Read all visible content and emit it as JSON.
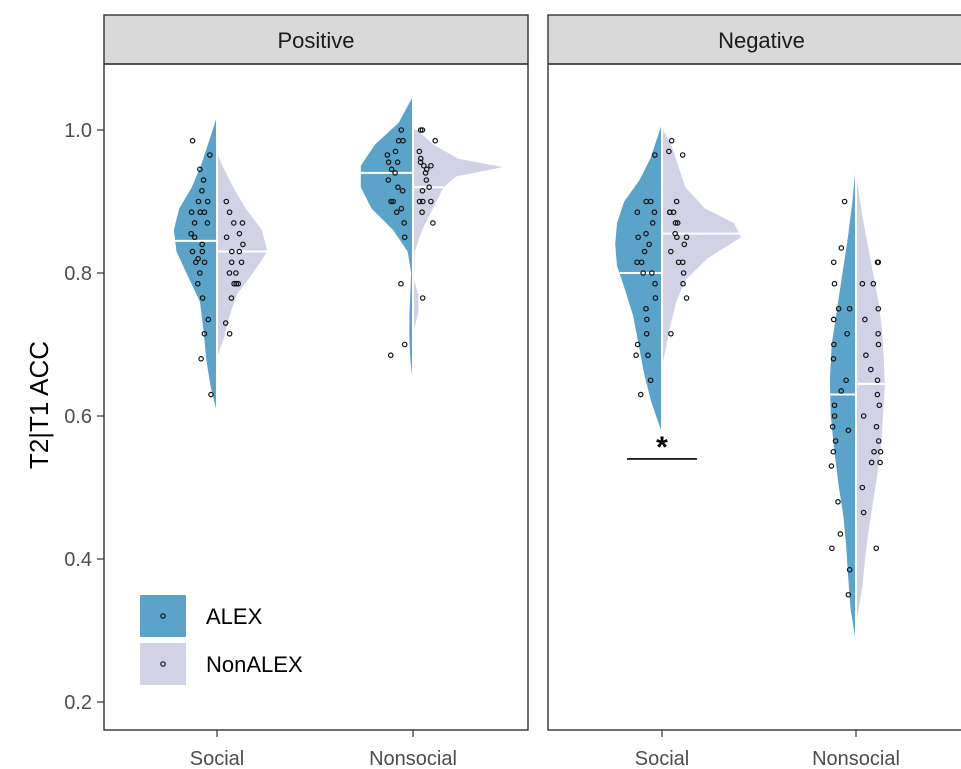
{
  "chart_data": {
    "type": "violin",
    "ylabel": "T2|T1 ACC",
    "ylim": [
      0.15,
      1.12
    ],
    "yticks": [
      "0.2",
      "0.4",
      "0.6",
      "0.8",
      "1.0"
    ],
    "ytick_values": [
      0.2,
      0.4,
      0.6,
      0.8,
      1.0
    ],
    "grid": false,
    "legend_position": "bottom-left",
    "series": [
      {
        "name": "ALEX",
        "color": "#5ba3c9"
      },
      {
        "name": "NonALEX",
        "color": "#d2d2e6"
      }
    ],
    "panels": [
      {
        "title": "Positive",
        "categories": [
          "Social",
          "Nonsocial"
        ],
        "groups": [
          {
            "category": "Social",
            "ALEX": {
              "range": [
                0.61,
                1.015
              ],
              "mean": 0.845,
              "density": [
                [
                  0.61,
                  0.01
                ],
                [
                  0.64,
                  0.07
                ],
                [
                  0.68,
                  0.12
                ],
                [
                  0.72,
                  0.15
                ],
                [
                  0.76,
                  0.19
                ],
                [
                  0.8,
                  0.34
                ],
                [
                  0.83,
                  0.45
                ],
                [
                  0.86,
                  0.48
                ],
                [
                  0.89,
                  0.42
                ],
                [
                  0.92,
                  0.28
                ],
                [
                  0.95,
                  0.18
                ],
                [
                  0.98,
                  0.1
                ],
                [
                  1.015,
                  0.01
                ]
              ],
              "points": [
                0.985,
                0.965,
                0.945,
                0.93,
                0.915,
                0.9,
                0.9,
                0.885,
                0.885,
                0.885,
                0.87,
                0.87,
                0.855,
                0.85,
                0.84,
                0.83,
                0.83,
                0.82,
                0.815,
                0.815,
                0.8,
                0.785,
                0.765,
                0.735,
                0.715,
                0.68,
                0.63
              ]
            },
            "NonALEX": {
              "range": [
                0.685,
                0.965
              ],
              "mean": 0.83,
              "density": [
                [
                  0.685,
                  0.01
                ],
                [
                  0.71,
                  0.08
                ],
                [
                  0.74,
                  0.14
                ],
                [
                  0.77,
                  0.22
                ],
                [
                  0.8,
                  0.4
                ],
                [
                  0.83,
                  0.56
                ],
                [
                  0.86,
                  0.5
                ],
                [
                  0.89,
                  0.32
                ],
                [
                  0.92,
                  0.18
                ],
                [
                  0.95,
                  0.06
                ],
                [
                  0.965,
                  0.01
                ]
              ],
              "points": [
                0.9,
                0.885,
                0.87,
                0.87,
                0.855,
                0.85,
                0.84,
                0.83,
                0.83,
                0.815,
                0.815,
                0.8,
                0.8,
                0.785,
                0.785,
                0.785,
                0.765,
                0.73,
                0.715
              ]
            }
          },
          {
            "category": "Nonsocial",
            "ALEX": {
              "range": [
                0.655,
                1.045
              ],
              "mean": 0.94,
              "density": [
                [
                  0.655,
                  0.01
                ],
                [
                  0.68,
                  0.03
                ],
                [
                  0.71,
                  0.04
                ],
                [
                  0.74,
                  0.04
                ],
                [
                  0.77,
                  0.03
                ],
                [
                  0.8,
                  0.02
                ],
                [
                  0.83,
                  0.06
                ],
                [
                  0.86,
                  0.22
                ],
                [
                  0.89,
                  0.46
                ],
                [
                  0.92,
                  0.58
                ],
                [
                  0.95,
                  0.58
                ],
                [
                  0.98,
                  0.42
                ],
                [
                  1.01,
                  0.16
                ],
                [
                  1.045,
                  0.01
                ]
              ],
              "points": [
                1.0,
                0.985,
                0.985,
                0.97,
                0.965,
                0.955,
                0.955,
                0.945,
                0.94,
                0.93,
                0.92,
                0.915,
                0.9,
                0.9,
                0.89,
                0.885,
                0.87,
                0.85,
                0.785,
                0.7,
                0.685
              ]
            },
            "NonALEX": {
              "range": [
                0.72,
                1.0
              ],
              "mean": 0.92,
              "density": [
                [
                  0.72,
                  0.01
                ],
                [
                  0.745,
                  0.06
                ],
                [
                  0.77,
                  0.06
                ],
                [
                  0.79,
                  0.01
                ],
                [
                  0.83,
                  0.02
                ],
                [
                  0.86,
                  0.1
                ],
                [
                  0.89,
                  0.22
                ],
                [
                  0.92,
                  0.34
                ],
                [
                  0.935,
                  0.48
                ],
                [
                  0.948,
                  1.0
                ],
                [
                  0.96,
                  0.5
                ],
                [
                  0.98,
                  0.22
                ],
                [
                  1.0,
                  0.05
                ]
              ],
              "points": [
                1.0,
                1.0,
                0.985,
                0.97,
                0.96,
                0.955,
                0.95,
                0.95,
                0.945,
                0.94,
                0.93,
                0.92,
                0.915,
                0.9,
                0.9,
                0.9,
                0.885,
                0.87,
                0.765
              ]
            }
          }
        ]
      },
      {
        "title": "Negative",
        "categories": [
          "Social",
          "Nonsocial"
        ],
        "annotation": {
          "text": "*",
          "category": "Social",
          "y": 0.54
        },
        "groups": [
          {
            "category": "Social",
            "ALEX": {
              "range": [
                0.58,
                1.005
              ],
              "mean": 0.8,
              "density": [
                [
                  0.58,
                  0.01
                ],
                [
                  0.62,
                  0.12
                ],
                [
                  0.66,
                  0.2
                ],
                [
                  0.7,
                  0.26
                ],
                [
                  0.74,
                  0.32
                ],
                [
                  0.78,
                  0.42
                ],
                [
                  0.81,
                  0.5
                ],
                [
                  0.84,
                  0.52
                ],
                [
                  0.87,
                  0.5
                ],
                [
                  0.9,
                  0.42
                ],
                [
                  0.93,
                  0.25
                ],
                [
                  0.96,
                  0.13
                ],
                [
                  1.005,
                  0.01
                ]
              ],
              "points": [
                0.965,
                0.9,
                0.9,
                0.885,
                0.885,
                0.87,
                0.855,
                0.85,
                0.84,
                0.83,
                0.815,
                0.815,
                0.8,
                0.8,
                0.785,
                0.765,
                0.75,
                0.735,
                0.715,
                0.7,
                0.685,
                0.685,
                0.65,
                0.63
              ]
            },
            "NonALEX": {
              "range": [
                0.675,
                1.0
              ],
              "mean": 0.855,
              "density": [
                [
                  0.675,
                  0.01
                ],
                [
                  0.7,
                  0.05
                ],
                [
                  0.73,
                  0.1
                ],
                [
                  0.76,
                  0.16
                ],
                [
                  0.79,
                  0.26
                ],
                [
                  0.82,
                  0.5
                ],
                [
                  0.85,
                  0.88
                ],
                [
                  0.87,
                  0.8
                ],
                [
                  0.89,
                  0.48
                ],
                [
                  0.92,
                  0.26
                ],
                [
                  0.95,
                  0.18
                ],
                [
                  0.98,
                  0.1
                ],
                [
                  1.0,
                  0.01
                ]
              ],
              "points": [
                0.985,
                0.97,
                0.965,
                0.9,
                0.885,
                0.885,
                0.885,
                0.87,
                0.87,
                0.855,
                0.85,
                0.85,
                0.84,
                0.83,
                0.815,
                0.815,
                0.8,
                0.785,
                0.765,
                0.715
              ]
            }
          },
          {
            "category": "Nonsocial",
            "ALEX": {
              "range": [
                0.29,
                0.94
              ],
              "mean": 0.63,
              "density": [
                [
                  0.29,
                  0.01
                ],
                [
                  0.33,
                  0.06
                ],
                [
                  0.38,
                  0.09
                ],
                [
                  0.42,
                  0.11
                ],
                [
                  0.46,
                  0.14
                ],
                [
                  0.5,
                  0.19
                ],
                [
                  0.55,
                  0.24
                ],
                [
                  0.6,
                  0.28
                ],
                [
                  0.65,
                  0.29
                ],
                [
                  0.7,
                  0.27
                ],
                [
                  0.75,
                  0.21
                ],
                [
                  0.8,
                  0.15
                ],
                [
                  0.85,
                  0.09
                ],
                [
                  0.9,
                  0.04
                ],
                [
                  0.94,
                  0.01
                ]
              ],
              "points": [
                0.9,
                0.835,
                0.815,
                0.785,
                0.75,
                0.75,
                0.735,
                0.715,
                0.7,
                0.68,
                0.65,
                0.635,
                0.615,
                0.6,
                0.585,
                0.58,
                0.565,
                0.55,
                0.53,
                0.48,
                0.435,
                0.415,
                0.385,
                0.35
              ]
            },
            "NonALEX": {
              "range": [
                0.315,
                0.93
              ],
              "mean": 0.645,
              "density": [
                [
                  0.315,
                  0.01
                ],
                [
                  0.36,
                  0.07
                ],
                [
                  0.4,
                  0.1
                ],
                [
                  0.44,
                  0.14
                ],
                [
                  0.48,
                  0.19
                ],
                [
                  0.52,
                  0.24
                ],
                [
                  0.56,
                  0.28
                ],
                [
                  0.6,
                  0.3
                ],
                [
                  0.64,
                  0.32
                ],
                [
                  0.68,
                  0.31
                ],
                [
                  0.72,
                  0.29
                ],
                [
                  0.76,
                  0.25
                ],
                [
                  0.8,
                  0.19
                ],
                [
                  0.84,
                  0.13
                ],
                [
                  0.88,
                  0.07
                ],
                [
                  0.93,
                  0.01
                ]
              ],
              "points": [
                0.815,
                0.815,
                0.785,
                0.785,
                0.75,
                0.735,
                0.715,
                0.7,
                0.685,
                0.665,
                0.65,
                0.63,
                0.615,
                0.6,
                0.585,
                0.565,
                0.55,
                0.55,
                0.535,
                0.535,
                0.5,
                0.465,
                0.415
              ]
            }
          }
        ]
      }
    ]
  }
}
